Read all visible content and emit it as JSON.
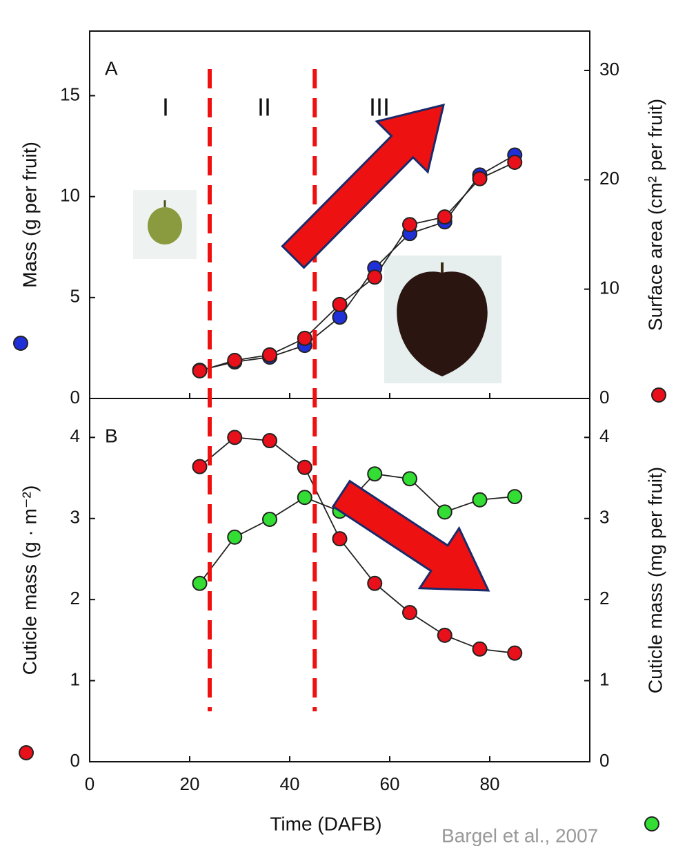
{
  "chart_data": [
    {
      "type": "line",
      "panel_label": "A",
      "ylabel": "Mass (g per fruit)",
      "y2label": "Surface area (cm² per fruit)",
      "phase_labels": [
        "I",
        "II",
        "III"
      ],
      "phase_boundaries": [
        24,
        45
      ],
      "x": [
        22,
        29,
        36,
        43,
        50,
        57,
        64,
        71,
        78,
        85
      ],
      "xlim": [
        0,
        100
      ],
      "xticks": [
        0,
        20,
        40,
        60,
        80
      ],
      "ylim": [
        0,
        18.2
      ],
      "yticks": [
        0,
        5,
        10,
        15
      ],
      "y2lim": [
        0,
        33.6
      ],
      "y2ticks": [
        0,
        10,
        20,
        30
      ],
      "series": [
        {
          "color": "#2030d8",
          "values": [
            1.4,
            1.81,
            2.05,
            2.63,
            4.03,
            6.46,
            8.17,
            8.75,
            11.07,
            12.06
          ]
        },
        {
          "color": "#e8101a",
          "axis": "y2",
          "values": [
            2.53,
            3.48,
            3.99,
            5.5,
            8.6,
            11.1,
            15.9,
            16.6,
            20.1,
            21.6
          ]
        }
      ]
    },
    {
      "type": "line",
      "panel_label": "B",
      "xlabel": "Time (DAFB)",
      "ylabel": "Cuticle mass (g · m⁻²)",
      "y2label": "Cuticle mass (mg per fruit)",
      "x": [
        22,
        29,
        36,
        43,
        50,
        57,
        64,
        71,
        78,
        85
      ],
      "xlim": [
        0,
        100
      ],
      "xticks": [
        0,
        20,
        40,
        60,
        80
      ],
      "ylim": [
        0,
        4.48
      ],
      "yticks": [
        0,
        1,
        2,
        3,
        4
      ],
      "y2lim": [
        0,
        4.48
      ],
      "y2ticks": [
        0,
        1,
        2,
        3,
        4
      ],
      "series": [
        {
          "color": "#e8101a",
          "values": [
            3.64,
            4.0,
            3.96,
            3.63,
            2.75,
            2.2,
            1.84,
            1.56,
            1.39,
            1.34
          ]
        },
        {
          "color": "#33dd33",
          "axis": "y2",
          "values": [
            2.2,
            2.77,
            2.99,
            3.26,
            3.09,
            3.55,
            3.49,
            3.08,
            3.23,
            3.27
          ]
        }
      ]
    }
  ],
  "citation": "Bargel et al., 2007"
}
